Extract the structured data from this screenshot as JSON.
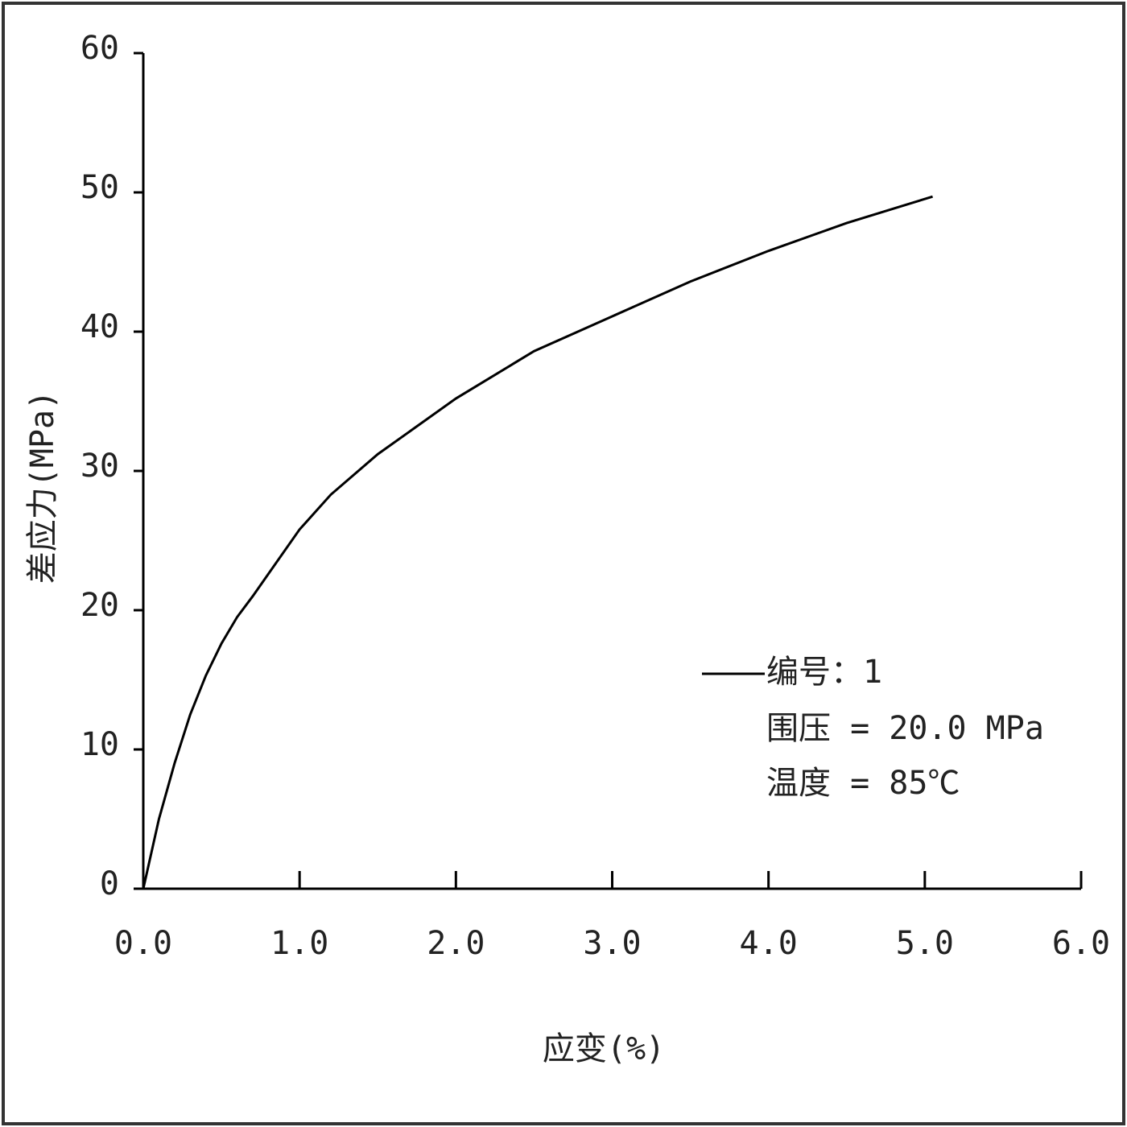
{
  "chart_data": {
    "type": "line",
    "x_label": "应变(%)",
    "y_label": "差应力(MPa)",
    "x": [
      0,
      0.1,
      0.2,
      0.3,
      0.4,
      0.5,
      0.6,
      0.7,
      0.8,
      1.0,
      1.2,
      1.5,
      2.0,
      2.5,
      3.0,
      3.5,
      4.0,
      4.5,
      5.05
    ],
    "series": [
      {
        "name": "编号：1",
        "color": "#000000",
        "values": [
          0,
          5,
          9,
          12.5,
          15.3,
          17.6,
          19.5,
          21,
          22.6,
          25.8,
          28.3,
          31.2,
          35.2,
          38.6,
          41.1,
          43.6,
          45.8,
          47.8,
          49.7
        ]
      }
    ],
    "annotations": [
      "围压 = 20.0 MPa",
      "温度 = 85℃"
    ],
    "xlim": [
      0,
      6
    ],
    "xticks": [
      {
        "value": 0,
        "label": "0.0"
      },
      {
        "value": 1,
        "label": "1.0"
      },
      {
        "value": 2,
        "label": "2.0"
      },
      {
        "value": 3,
        "label": "3.0"
      },
      {
        "value": 4,
        "label": "4.0"
      },
      {
        "value": 5,
        "label": "5.0"
      },
      {
        "value": 6,
        "label": "6.0"
      }
    ],
    "ylim": [
      0,
      60
    ],
    "yticks": [
      0,
      10,
      20,
      30,
      40,
      50,
      60
    ],
    "grid": false
  }
}
